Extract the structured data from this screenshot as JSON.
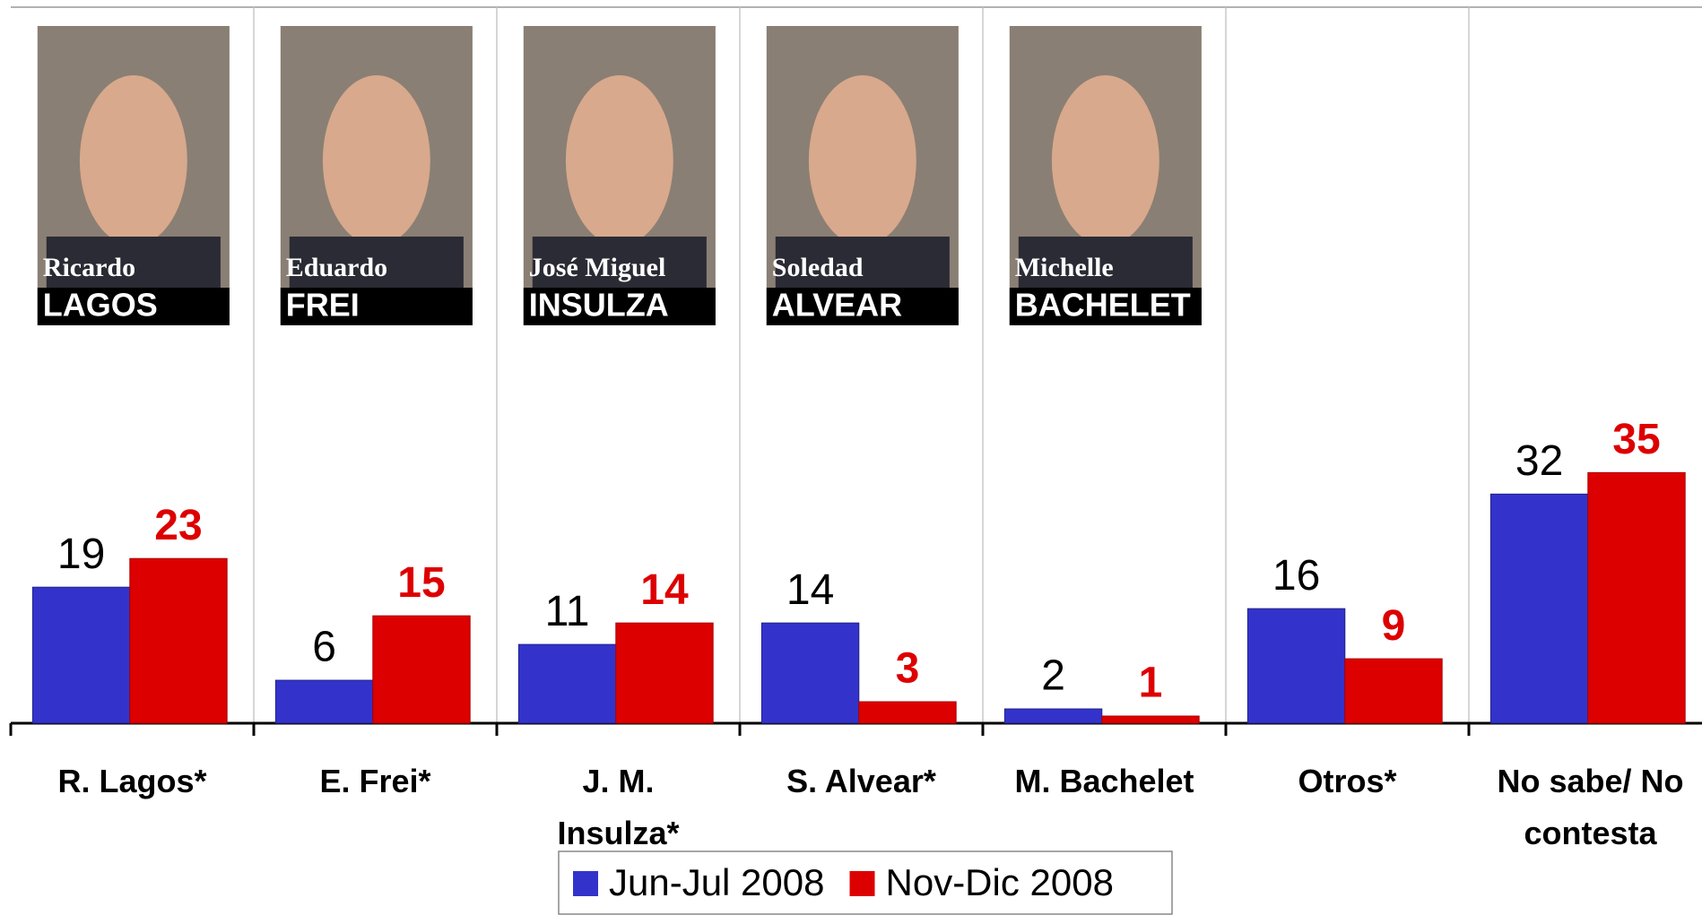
{
  "chart_data": {
    "type": "bar",
    "categories": [
      "R. Lagos*",
      "E. Frei*",
      "J. M. Insulza*",
      "S. Alvear*",
      "M. Bachelet",
      "Otros*",
      "No sabe/ No contesta"
    ],
    "series": [
      {
        "name": "Jun-Jul 2008",
        "color": "#3333cc",
        "values": [
          19,
          6,
          11,
          14,
          2,
          16,
          32
        ]
      },
      {
        "name": "Nov-Dic 2008",
        "color": "#dd0000",
        "values": [
          23,
          15,
          14,
          3,
          1,
          9,
          35
        ]
      }
    ],
    "ylim": [
      0,
      100
    ],
    "legend": "bottom"
  },
  "photos": [
    {
      "first": "Ricardo",
      "last": "LAGOS"
    },
    {
      "first": "Eduardo",
      "last": "FREI"
    },
    {
      "first": "José Miguel",
      "last": "INSULZA"
    },
    {
      "first": "Soledad",
      "last": "ALVEAR"
    },
    {
      "first": "Michelle",
      "last": "BACHELET"
    }
  ]
}
